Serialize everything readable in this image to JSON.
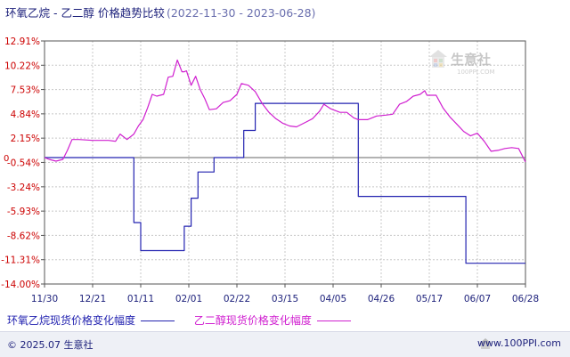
{
  "header": {
    "title": "环氧乙烷 - 乙二醇 价格趋势比较",
    "date_range": "(2022-11-30 - 2023-06-28)"
  },
  "watermark": {
    "text": "生意社",
    "url": "100PPI.COM"
  },
  "footer": {
    "copyright": "© 2025.07 生意社",
    "site": "www.100PPI.com"
  },
  "colors": {
    "series1": "#2323b0",
    "series2": "#d020d0",
    "axis_text": "#cc0000",
    "date_text": "#1b1f7a",
    "grid": "#c8c8c8"
  },
  "chart_data": {
    "type": "line",
    "x_tick_labels": [
      "11/30",
      "12/21",
      "01/11",
      "02/01",
      "02/22",
      "03/15",
      "04/05",
      "04/26",
      "05/17",
      "06/07",
      "06/28"
    ],
    "x_ticks": [
      "2022-11-30",
      "2022-12-21",
      "2023-01-11",
      "2023-02-01",
      "2023-02-22",
      "2023-03-15",
      "2023-04-05",
      "2023-04-26",
      "2023-05-17",
      "2023-06-07",
      "2023-06-28"
    ],
    "x_range": [
      "2022-11-30",
      "2023-06-28"
    ],
    "y_tick_labels": [
      "12.91%",
      "10.22%",
      "7.53%",
      "4.84%",
      "2.15%",
      "-0.54%",
      "-3.24%",
      "-5.93%",
      "-8.62%",
      "-11.31%",
      "-14.00%"
    ],
    "y_ticks": [
      12.91,
      10.22,
      7.53,
      4.84,
      2.15,
      -0.54,
      -3.24,
      -5.93,
      -8.62,
      -11.31,
      -14.0
    ],
    "y_zero_label": "0",
    "ylim": [
      -14.0,
      12.91
    ],
    "grid": true,
    "legend_position": "bottom",
    "series": [
      {
        "name": "环氧乙烷现货价格变化幅度",
        "color": "#2323b0",
        "step": true,
        "points": [
          [
            "2022-11-30",
            0
          ],
          [
            "2023-01-04",
            0
          ],
          [
            "2023-01-08",
            -7.2
          ],
          [
            "2023-01-11",
            -10.3
          ],
          [
            "2023-01-28",
            -10.3
          ],
          [
            "2023-01-30",
            -7.6
          ],
          [
            "2023-02-02",
            -4.5
          ],
          [
            "2023-02-05",
            -1.6
          ],
          [
            "2023-02-12",
            0
          ],
          [
            "2023-02-23",
            0
          ],
          [
            "2023-02-25",
            3.0
          ],
          [
            "2023-03-02",
            6.0
          ],
          [
            "2023-04-14",
            6.0
          ],
          [
            "2023-04-16",
            -4.3
          ],
          [
            "2023-05-31",
            -4.3
          ],
          [
            "2023-06-02",
            -11.7
          ],
          [
            "2023-06-28",
            -11.7
          ]
        ]
      },
      {
        "name": "乙二醇现货价格变化幅度",
        "color": "#d020d0",
        "step": false,
        "points": [
          [
            "2022-11-30",
            0
          ],
          [
            "2022-12-02",
            -0.2
          ],
          [
            "2022-12-05",
            -0.4
          ],
          [
            "2022-12-08",
            -0.2
          ],
          [
            "2022-12-10",
            0.8
          ],
          [
            "2022-12-12",
            2.0
          ],
          [
            "2022-12-15",
            2.0
          ],
          [
            "2022-12-21",
            1.9
          ],
          [
            "2022-12-28",
            1.9
          ],
          [
            "2022-12-31",
            1.8
          ],
          [
            "2023-01-02",
            2.6
          ],
          [
            "2023-01-05",
            2.0
          ],
          [
            "2023-01-08",
            2.6
          ],
          [
            "2023-01-10",
            3.5
          ],
          [
            "2023-01-12",
            4.2
          ],
          [
            "2023-01-14",
            5.5
          ],
          [
            "2023-01-16",
            7.0
          ],
          [
            "2023-01-18",
            6.8
          ],
          [
            "2023-01-21",
            7.0
          ],
          [
            "2023-01-23",
            8.9
          ],
          [
            "2023-01-25",
            9.0
          ],
          [
            "2023-01-27",
            10.8
          ],
          [
            "2023-01-29",
            9.5
          ],
          [
            "2023-01-30",
            9.5
          ],
          [
            "2023-01-31",
            9.6
          ],
          [
            "2023-02-02",
            8.0
          ],
          [
            "2023-02-04",
            9.0
          ],
          [
            "2023-02-06",
            7.5
          ],
          [
            "2023-02-08",
            6.5
          ],
          [
            "2023-02-10",
            5.3
          ],
          [
            "2023-02-13",
            5.4
          ],
          [
            "2023-02-16",
            6.1
          ],
          [
            "2023-02-19",
            6.3
          ],
          [
            "2023-02-22",
            7.0
          ],
          [
            "2023-02-24",
            8.2
          ],
          [
            "2023-02-27",
            8.0
          ],
          [
            "2023-03-02",
            7.3
          ],
          [
            "2023-03-05",
            6.0
          ],
          [
            "2023-03-08",
            5.0
          ],
          [
            "2023-03-11",
            4.3
          ],
          [
            "2023-03-14",
            3.8
          ],
          [
            "2023-03-17",
            3.5
          ],
          [
            "2023-03-20",
            3.4
          ],
          [
            "2023-03-24",
            3.9
          ],
          [
            "2023-03-27",
            4.3
          ],
          [
            "2023-03-30",
            5.1
          ],
          [
            "2023-04-01",
            5.9
          ],
          [
            "2023-04-04",
            5.4
          ],
          [
            "2023-04-08",
            5.0
          ],
          [
            "2023-04-11",
            5.0
          ],
          [
            "2023-04-14",
            4.4
          ],
          [
            "2023-04-16",
            4.2
          ],
          [
            "2023-04-20",
            4.2
          ],
          [
            "2023-04-24",
            4.6
          ],
          [
            "2023-04-28",
            4.7
          ],
          [
            "2023-05-01",
            4.8
          ],
          [
            "2023-05-04",
            5.9
          ],
          [
            "2023-05-07",
            6.2
          ],
          [
            "2023-05-10",
            6.8
          ],
          [
            "2023-05-13",
            7.0
          ],
          [
            "2023-05-15",
            7.4
          ],
          [
            "2023-05-16",
            6.9
          ],
          [
            "2023-05-20",
            6.9
          ],
          [
            "2023-05-23",
            5.5
          ],
          [
            "2023-05-26",
            4.5
          ],
          [
            "2023-05-29",
            3.7
          ],
          [
            "2023-06-01",
            2.9
          ],
          [
            "2023-06-04",
            2.4
          ],
          [
            "2023-06-07",
            2.7
          ],
          [
            "2023-06-10",
            1.8
          ],
          [
            "2023-06-13",
            0.7
          ],
          [
            "2023-06-16",
            0.8
          ],
          [
            "2023-06-19",
            1.0
          ],
          [
            "2023-06-22",
            1.1
          ],
          [
            "2023-06-25",
            1.0
          ],
          [
            "2023-06-28",
            -0.5
          ]
        ]
      }
    ]
  }
}
